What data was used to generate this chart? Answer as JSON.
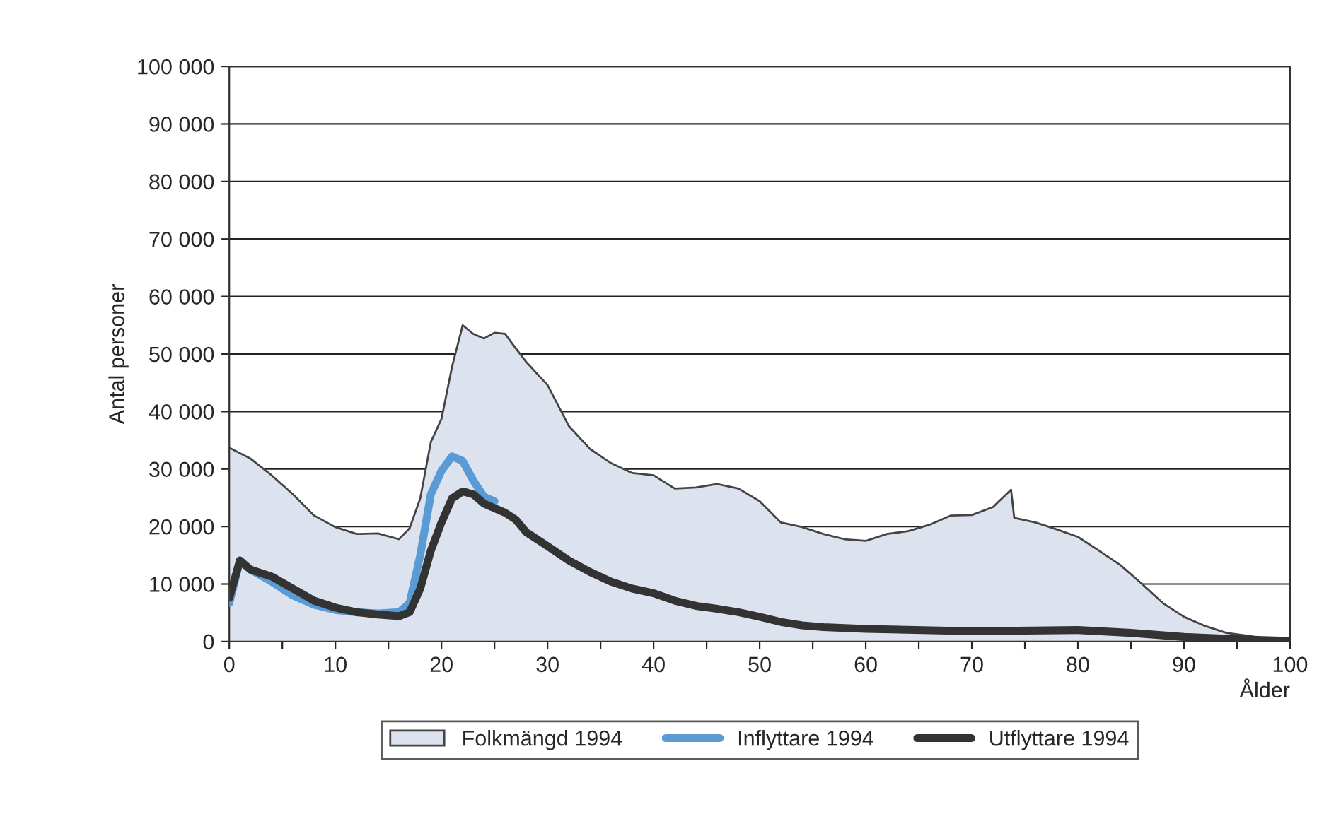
{
  "chart_data": {
    "type": "line",
    "xlabel": "Ålder",
    "ylabel": "Antal personer",
    "xlim": [
      0,
      100
    ],
    "ylim": [
      0,
      100000
    ],
    "xticks": [
      0,
      {
        "value": 5,
        "label": null
      },
      10,
      {
        "value": 15,
        "label": null
      },
      20,
      {
        "value": 25,
        "label": null
      },
      30,
      {
        "value": 35,
        "label": null
      },
      40,
      {
        "value": 45,
        "label": null
      },
      50,
      {
        "value": 55,
        "label": null
      },
      60,
      {
        "value": 65,
        "label": null
      },
      70,
      {
        "value": 75,
        "label": null
      },
      80,
      {
        "value": 85,
        "label": null
      },
      90,
      {
        "value": 95,
        "label": null
      },
      100
    ],
    "yticks": [
      0,
      {
        "value": 10000,
        "label": "10 000"
      },
      {
        "value": 20000,
        "label": "20 000"
      },
      {
        "value": 30000,
        "label": "30 000"
      },
      {
        "value": 40000,
        "label": "40 000"
      },
      {
        "value": 50000,
        "label": "50 000"
      },
      {
        "value": 60000,
        "label": "60 000"
      },
      {
        "value": 70000,
        "label": "70 000"
      },
      {
        "value": 80000,
        "label": "80 000"
      },
      {
        "value": 90000,
        "label": "90 000"
      },
      {
        "value": 100000,
        "label": "100 000"
      }
    ],
    "grid": "y",
    "legend": "bottom",
    "marker": "none",
    "line_style": "solid",
    "series": [
      {
        "name": "Folkmängd 1994",
        "type": "area",
        "color": "#dde3ee",
        "x": [
          0,
          2,
          4,
          6,
          8,
          10,
          12,
          14,
          16,
          17,
          18,
          19,
          20,
          21,
          22,
          23,
          24,
          25,
          26,
          27,
          28,
          30,
          32,
          34,
          36,
          38,
          40,
          42,
          44,
          46,
          48,
          50,
          52,
          54,
          56,
          58,
          60,
          62,
          64,
          66,
          68,
          70,
          72,
          73.7,
          74,
          76,
          78,
          80,
          82,
          84,
          86,
          88,
          90,
          92,
          94,
          96,
          98,
          100
        ],
        "values": [
          33700,
          31800,
          28900,
          25600,
          21900,
          19900,
          18700,
          18800,
          17800,
          19700,
          24900,
          34700,
          38700,
          47800,
          55000,
          53500,
          52700,
          53700,
          53500,
          51000,
          48600,
          44600,
          37500,
          33500,
          31000,
          29300,
          28900,
          26600,
          26800,
          27400,
          26600,
          24400,
          20700,
          19900,
          18700,
          17800,
          17500,
          18700,
          19200,
          20300,
          21900,
          22000,
          23400,
          26400,
          21500,
          20700,
          19500,
          18200,
          15800,
          13300,
          10100,
          6700,
          4300,
          2700,
          1500,
          1000,
          400,
          100
        ]
      },
      {
        "name": "Inflyttare 1994",
        "color": "#5b9bd5",
        "x": [
          0,
          1,
          2,
          4,
          6,
          8,
          10,
          12,
          14,
          16,
          17,
          18,
          19,
          20,
          21,
          22,
          23,
          24,
          25
        ],
        "values": [
          6700,
          14100,
          12500,
          10400,
          8000,
          6400,
          5500,
          5100,
          4900,
          5100,
          6700,
          15000,
          25600,
          29700,
          32200,
          31400,
          28000,
          25200,
          24400
        ]
      },
      {
        "name": "Utflyttare 1994",
        "color": "#333333",
        "x": [
          0,
          1,
          2,
          4,
          6,
          8,
          10,
          12,
          14,
          16,
          17,
          18,
          19,
          20,
          21,
          22,
          23,
          24,
          25,
          26,
          27,
          28,
          30,
          32,
          34,
          36,
          38,
          40,
          42,
          44,
          46,
          48,
          50,
          52,
          54,
          56,
          60,
          70,
          80,
          85,
          90,
          95,
          100
        ],
        "values": [
          7600,
          14100,
          12500,
          11300,
          9200,
          7100,
          5900,
          5100,
          4700,
          4400,
          5100,
          9200,
          15800,
          20700,
          24900,
          26100,
          25600,
          24000,
          23200,
          22400,
          21200,
          19000,
          16600,
          14100,
          12100,
          10400,
          9200,
          8400,
          7100,
          6200,
          5700,
          5100,
          4300,
          3400,
          2800,
          2500,
          2200,
          1800,
          2000,
          1500,
          800,
          400,
          100
        ]
      }
    ]
  }
}
